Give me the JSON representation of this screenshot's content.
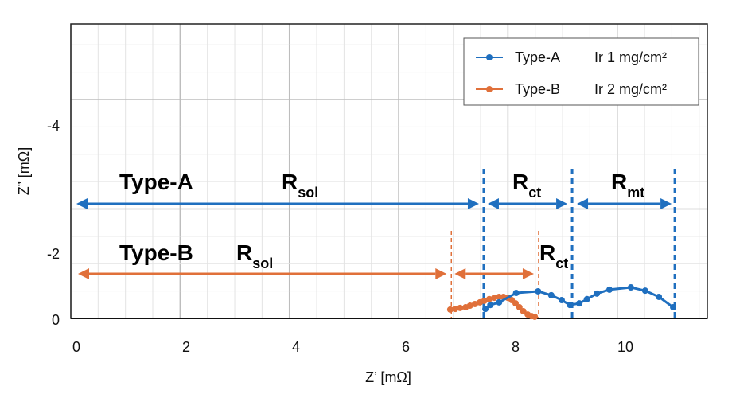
{
  "chart_data": {
    "type": "line",
    "title": "",
    "xlabel": "Z’ [mΩ]",
    "ylabel": "Z” [mΩ]",
    "xlim": [
      0,
      11.5
    ],
    "ylim": [
      0,
      -5.8
    ],
    "x_ticks": [
      "0",
      "2",
      "4",
      "6",
      "8",
      "10"
    ],
    "x_tick_values": [
      0,
      2,
      4,
      6,
      8,
      10
    ],
    "y_ticks": [
      "-4",
      "-2",
      "0"
    ],
    "grid": true,
    "legend_position": "top-right",
    "series": [
      {
        "name": "Type-A",
        "label_loading": "Ir  1 mg/cm²",
        "color": "#1f6fbf",
        "x": [
          7.45,
          7.54,
          7.7,
          8.01,
          8.41,
          8.65,
          8.84,
          8.99,
          9.16,
          9.3,
          9.48,
          9.71,
          10.1,
          10.36,
          10.61,
          10.87
        ],
        "y": [
          -0.29,
          -0.41,
          -0.49,
          -0.78,
          -0.83,
          -0.71,
          -0.56,
          -0.41,
          -0.46,
          -0.59,
          -0.76,
          -0.88,
          -0.95,
          -0.85,
          -0.66,
          -0.34
        ]
      },
      {
        "name": "Type-B",
        "label_loading": "Ir  2 mg/cm²",
        "color": "#e0703a",
        "x": [
          6.81,
          6.9,
          6.99,
          7.09,
          7.17,
          7.26,
          7.35,
          7.43,
          7.52,
          7.61,
          7.7,
          7.78,
          7.86,
          7.93,
          8.0,
          8.07,
          8.14,
          8.22,
          8.29,
          8.35
        ],
        "y": [
          -0.27,
          -0.29,
          -0.32,
          -0.34,
          -0.39,
          -0.44,
          -0.49,
          -0.54,
          -0.59,
          -0.63,
          -0.66,
          -0.66,
          -0.63,
          -0.56,
          -0.46,
          -0.34,
          -0.22,
          -0.12,
          -0.07,
          -0.05
        ]
      }
    ],
    "annotations": {
      "type_a": {
        "label": "Type-A",
        "rsol": {
          "main": "R",
          "sub": "sol",
          "from": 0,
          "to": 7.42
        },
        "rct": {
          "main": "R",
          "sub": "ct",
          "from": 7.42,
          "to": 9.03
        },
        "rmt": {
          "main": "R",
          "sub": "mt",
          "from": 9.03,
          "to": 10.9
        },
        "dividers": [
          7.42,
          9.03,
          10.9
        ]
      },
      "type_b": {
        "label": "Type-B",
        "rsol": {
          "main": "R",
          "sub": "sol",
          "from": 0,
          "to": 6.83
        },
        "rct": {
          "main": "R",
          "sub": "ct",
          "from": 6.83,
          "to": 8.42
        },
        "dividers": [
          6.83,
          8.42
        ]
      }
    }
  }
}
